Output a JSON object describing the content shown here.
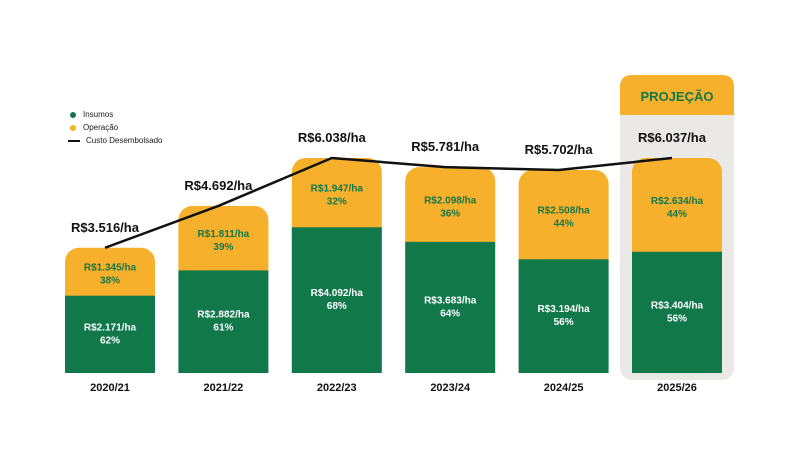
{
  "colors": {
    "insumos": "#11784a",
    "operacao": "#f7b02b",
    "line": "#111111",
    "projection_bg": "#ebe9e6",
    "insumos_text": "#ffffff",
    "operacao_text": "#11784a"
  },
  "legend": {
    "insumos": "Insumos",
    "operacao": "Operação",
    "custo": "Custo Desembolsado"
  },
  "projection_label": "PROJEÇÃO",
  "chart_data": {
    "type": "bar",
    "stacked": true,
    "categories": [
      "2020/21",
      "2021/22",
      "2022/23",
      "2023/24",
      "2024/25",
      "2025/26"
    ],
    "series": [
      {
        "name": "Insumos",
        "values": [
          2171,
          2882,
          4092,
          3683,
          3194,
          3404
        ],
        "labels": [
          "R$2.171/ha",
          "R$2.882/ha",
          "R$4.092/ha",
          "R$3.683/ha",
          "R$3.194/ha",
          "R$3.404/ha"
        ],
        "pct": [
          "62%",
          "61%",
          "68%",
          "64%",
          "56%",
          "56%"
        ]
      },
      {
        "name": "Operação",
        "values": [
          1345,
          1811,
          1947,
          2098,
          2508,
          2634
        ],
        "labels": [
          "R$1.345/ha",
          "R$1.811/ha",
          "R$1.947/ha",
          "R$2.098/ha",
          "R$2.508/ha",
          "R$2.634/ha"
        ],
        "pct": [
          "38%",
          "39%",
          "32%",
          "36%",
          "44%",
          "44%"
        ]
      }
    ],
    "line": {
      "name": "Custo Desembolsado",
      "values": [
        3516,
        4692,
        6038,
        5781,
        5702,
        6037
      ],
      "labels": [
        "R$3.516/ha",
        "R$4.692/ha",
        "R$6.038/ha",
        "R$5.781/ha",
        "R$5.702/ha",
        "R$6.037/ha"
      ]
    },
    "projection_category": "2025/26",
    "ylim": [
      0,
      6038
    ],
    "legend_position": "top-left"
  }
}
